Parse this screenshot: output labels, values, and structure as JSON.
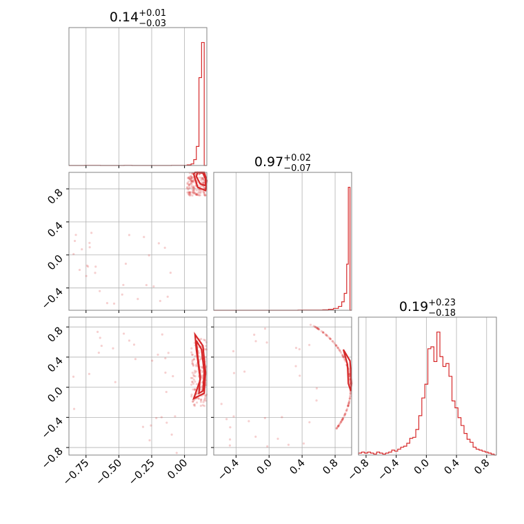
{
  "chart_data": {
    "type": "corner",
    "color": "#d62728",
    "grid": true,
    "parameters": [
      {
        "title_median": "0.14",
        "title_plus": "+0.01",
        "title_minus": "−0.03",
        "range": [
          -0.88,
          0.17
        ]
      },
      {
        "title_median": "0.97",
        "title_plus": "+0.02",
        "title_minus": "−0.07",
        "range": [
          -0.67,
          1.0
        ]
      },
      {
        "title_median": "0.19",
        "title_plus": "+0.23",
        "title_minus": "−0.18",
        "range": [
          -0.9,
          0.93
        ]
      }
    ],
    "ticks": {
      "x0": [
        "−0.75",
        "−0.50",
        "−0.25",
        "0.00"
      ],
      "x1": [
        "−0.4",
        "0.0",
        "0.4",
        "0.8"
      ],
      "x2": [
        "−0.8",
        "−0.4",
        "0.0",
        "0.4",
        "0.8"
      ],
      "y1": [
        "−0.4",
        "0.0",
        "0.4",
        "0.8"
      ],
      "y2": [
        "−0.8",
        "−0.4",
        "0.0",
        "0.4",
        "0.8"
      ]
    },
    "tick_values": {
      "x0": [
        -0.75,
        -0.5,
        -0.25,
        0.0
      ],
      "x1": [
        -0.4,
        0.0,
        0.4,
        0.8
      ],
      "x2": [
        -0.8,
        -0.4,
        0.0,
        0.4,
        0.8
      ],
      "y1": [
        -0.4,
        0.0,
        0.4,
        0.8
      ],
      "y2": [
        -0.8,
        -0.4,
        0.0,
        0.4,
        0.8
      ]
    },
    "histograms": [
      {
        "param": 0,
        "bin_edges": [
          -0.88,
          -0.82,
          -0.76,
          -0.7,
          -0.64,
          -0.58,
          -0.52,
          -0.46,
          -0.4,
          -0.34,
          -0.28,
          -0.22,
          -0.16,
          -0.1,
          -0.04,
          -0.01,
          0.02,
          0.05,
          0.07,
          0.09,
          0.11,
          0.13,
          0.15,
          0.17
        ],
        "counts": [
          0,
          0,
          1,
          1,
          0,
          0,
          0,
          1,
          0,
          0,
          0,
          0,
          0,
          1,
          1,
          1,
          4,
          11,
          40,
          130,
          600,
          840,
          0
        ]
      },
      {
        "param": 1,
        "bin_edges": [
          -0.67,
          -0.55,
          -0.45,
          -0.35,
          -0.25,
          -0.15,
          -0.05,
          0.05,
          0.15,
          0.25,
          0.35,
          0.45,
          0.55,
          0.65,
          0.72,
          0.78,
          0.84,
          0.88,
          0.91,
          0.94,
          0.96,
          0.98,
          1.0
        ],
        "counts": [
          0,
          0,
          0,
          0,
          0,
          0,
          0,
          0,
          0,
          0,
          1,
          1,
          1,
          3,
          6,
          12,
          25,
          55,
          110,
          300,
          800,
          0
        ]
      },
      {
        "param": 2,
        "x": [
          -0.9,
          -0.86,
          -0.82,
          -0.78,
          -0.74,
          -0.7,
          -0.66,
          -0.62,
          -0.58,
          -0.54,
          -0.5,
          -0.46,
          -0.42,
          -0.38,
          -0.34,
          -0.3,
          -0.26,
          -0.22,
          -0.18,
          -0.14,
          -0.1,
          -0.06,
          -0.02,
          0.02,
          0.06,
          0.1,
          0.14,
          0.18,
          0.22,
          0.26,
          0.3,
          0.34,
          0.38,
          0.42,
          0.46,
          0.5,
          0.54,
          0.58,
          0.62,
          0.66,
          0.7,
          0.74,
          0.78,
          0.82,
          0.86,
          0.9
        ],
        "counts": [
          2,
          3,
          2,
          3,
          2,
          1,
          3,
          2,
          1,
          2,
          3,
          5,
          4,
          6,
          8,
          9,
          12,
          17,
          18,
          26,
          40,
          58,
          72,
          108,
          110,
          95,
          125,
          100,
          90,
          93,
          80,
          55,
          48,
          38,
          30,
          22,
          16,
          13,
          8,
          6,
          5,
          4,
          3,
          2,
          1,
          0
        ]
      }
    ],
    "scatter_pairs": [
      {
        "x_param": 0,
        "y_param": 1
      },
      {
        "x_param": 0,
        "y_param": 2
      },
      {
        "x_param": 1,
        "y_param": 2
      }
    ]
  }
}
